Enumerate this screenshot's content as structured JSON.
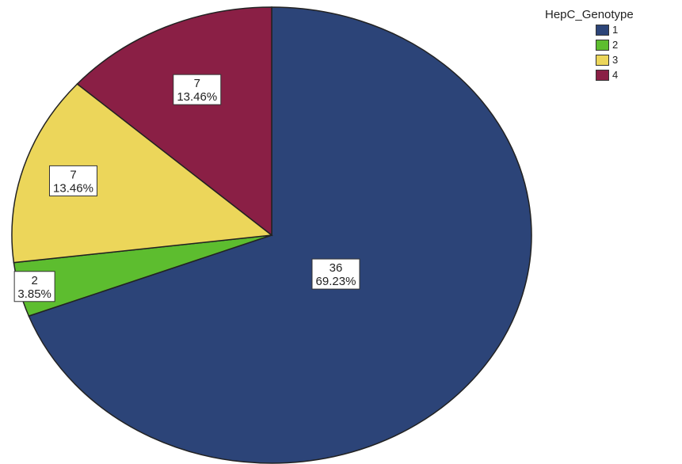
{
  "chart_data": {
    "type": "pie",
    "legend_title": "HepC_Genotype",
    "legend_position": "top-right",
    "slices": [
      {
        "label": "1",
        "count": 36,
        "percent": "69.23%",
        "value": 69.23,
        "color": "#2c4478"
      },
      {
        "label": "2",
        "count": 2,
        "percent": "3.85%",
        "value": 3.85,
        "color": "#5dbd2f"
      },
      {
        "label": "3",
        "count": 7,
        "percent": "13.46%",
        "value": 13.46,
        "color": "#ecd65a"
      },
      {
        "label": "4",
        "count": 7,
        "percent": "13.46%",
        "value": 13.46,
        "color": "#8a1f45"
      }
    ]
  }
}
